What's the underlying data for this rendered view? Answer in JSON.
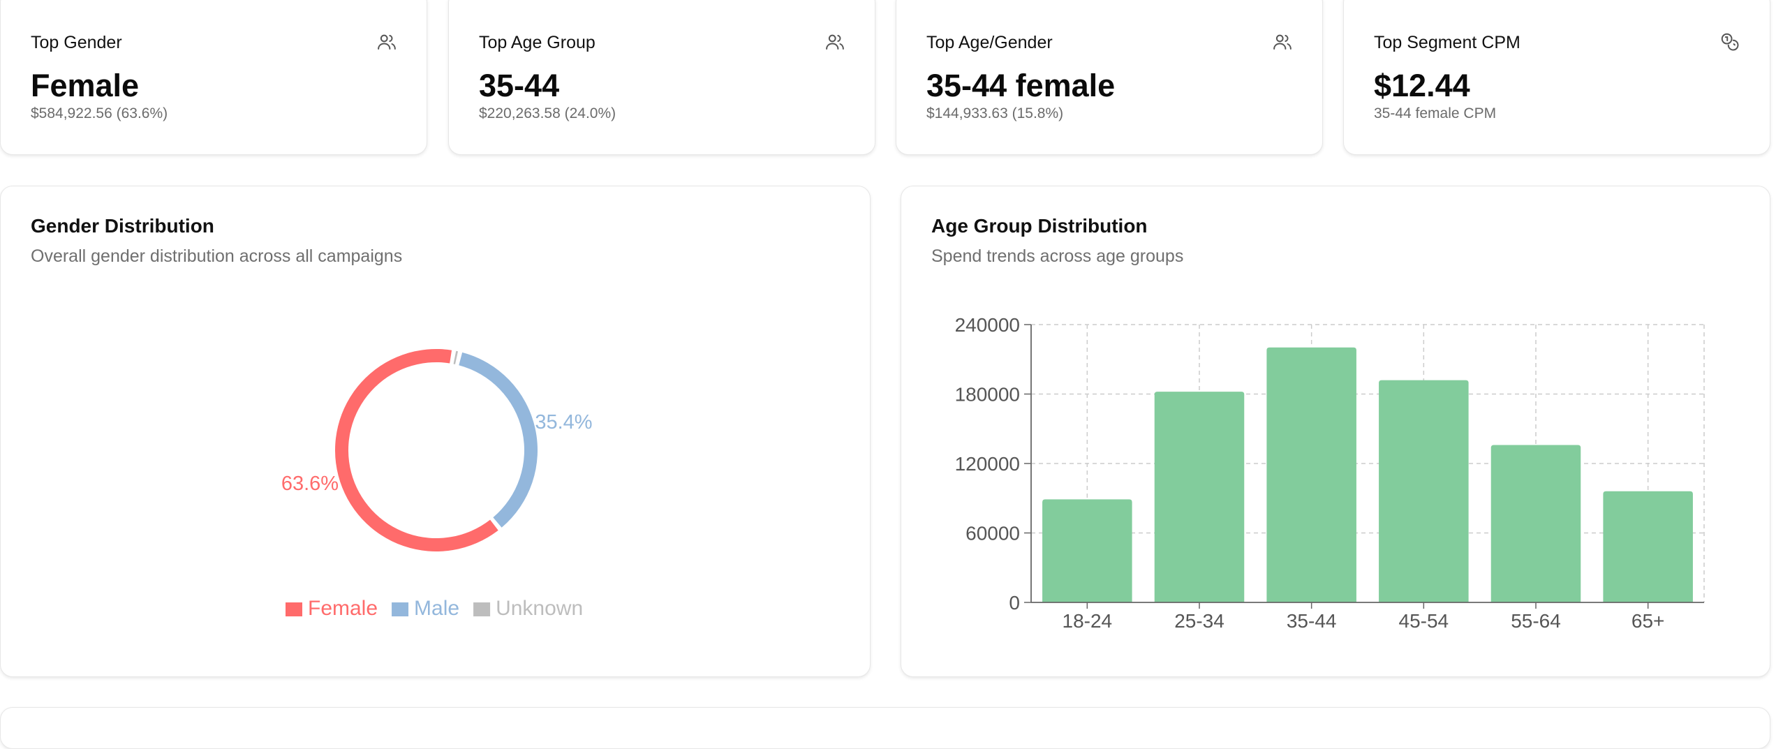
{
  "stats": [
    {
      "title": "Top Gender",
      "value": "Female",
      "sub": "$584,922.56 (63.6%)",
      "icon": "users-icon"
    },
    {
      "title": "Top Age Group",
      "value": "35-44",
      "sub": "$220,263.58 (24.0%)",
      "icon": "users-icon"
    },
    {
      "title": "Top Age/Gender",
      "value": "35-44 female",
      "sub": "$144,933.63 (15.8%)",
      "icon": "users-icon"
    },
    {
      "title": "Top Segment CPM",
      "value": "$12.44",
      "sub": "35-44 female CPM",
      "icon": "coins-icon"
    }
  ],
  "gender_card": {
    "title": "Gender Distribution",
    "subtitle": "Overall gender distribution across all campaigns"
  },
  "age_card": {
    "title": "Age Group Distribution",
    "subtitle": "Spend trends across age groups"
  },
  "colors": {
    "female": "#ff6b6b",
    "male": "#93b7dc",
    "unknown": "#bdbdbd",
    "bar": "#82cc9c"
  },
  "chart_data": [
    {
      "type": "pie",
      "variant": "donut",
      "labels": [
        "Female",
        "Male",
        "Unknown"
      ],
      "values": [
        63.6,
        35.4,
        1.0
      ],
      "slice_labels": [
        "63.6%",
        "35.4%",
        ""
      ],
      "legend": "bottom"
    },
    {
      "type": "bar",
      "categories": [
        "18-24",
        "25-34",
        "35-44",
        "45-54",
        "55-64",
        "65+"
      ],
      "values": [
        89000,
        182000,
        220263.58,
        192000,
        136000,
        96000
      ],
      "ylim": [
        0,
        240000
      ],
      "yticks": [
        "0",
        "60000",
        "120000",
        "180000",
        "240000"
      ],
      "grid": true
    }
  ]
}
